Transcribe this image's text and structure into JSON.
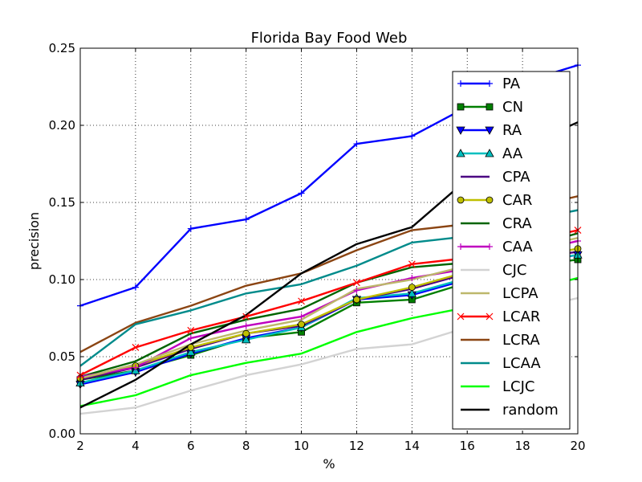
{
  "chart_data": {
    "type": "line",
    "title": "Florida Bay Food Web",
    "xlabel": "%",
    "ylabel": "precision",
    "xlim": [
      2,
      20
    ],
    "ylim": [
      0.0,
      0.25
    ],
    "xticks": [
      "2",
      "4",
      "6",
      "8",
      "10",
      "12",
      "14",
      "16",
      "18",
      "20"
    ],
    "yticks": [
      "0.00",
      "0.05",
      "0.10",
      "0.15",
      "0.20",
      "0.25"
    ],
    "grid": true,
    "legend_position": "right",
    "x": [
      2,
      4,
      6,
      8,
      10,
      12,
      14,
      16,
      18,
      20
    ],
    "series": [
      {
        "name": "PA",
        "color": "#0000ff",
        "marker": "plus",
        "values": [
          0.083,
          0.095,
          0.133,
          0.139,
          0.156,
          0.188,
          0.193,
          0.212,
          0.228,
          0.239
        ]
      },
      {
        "name": "CN",
        "color": "#007f00",
        "marker": "square",
        "values": [
          0.035,
          0.041,
          0.051,
          0.062,
          0.066,
          0.085,
          0.087,
          0.098,
          0.108,
          0.113
        ]
      },
      {
        "name": "RA",
        "color": "#0000ff",
        "marker": "triangle-down",
        "values": [
          0.032,
          0.04,
          0.052,
          0.062,
          0.069,
          0.087,
          0.09,
          0.1,
          0.11,
          0.116
        ]
      },
      {
        "name": "AA",
        "color": "#00bfbf",
        "marker": "triangle-up",
        "values": [
          0.033,
          0.041,
          0.053,
          0.061,
          0.069,
          0.088,
          0.091,
          0.101,
          0.111,
          0.116
        ]
      },
      {
        "name": "CPA",
        "color": "#4b0082",
        "marker": "none",
        "values": [
          0.035,
          0.043,
          0.055,
          0.065,
          0.07,
          0.087,
          0.094,
          0.104,
          0.113,
          0.118
        ]
      },
      {
        "name": "CAR",
        "color": "#bfbf00",
        "marker": "circle",
        "values": [
          0.036,
          0.044,
          0.056,
          0.065,
          0.071,
          0.087,
          0.095,
          0.105,
          0.114,
          0.12
        ]
      },
      {
        "name": "CRA",
        "color": "#006400",
        "marker": "none",
        "values": [
          0.037,
          0.047,
          0.065,
          0.074,
          0.081,
          0.098,
          0.108,
          0.111,
          0.12,
          0.13
        ]
      },
      {
        "name": "CAA",
        "color": "#bf00bf",
        "marker": "plus",
        "values": [
          0.037,
          0.043,
          0.062,
          0.07,
          0.076,
          0.093,
          0.101,
          0.107,
          0.117,
          0.125
        ]
      },
      {
        "name": "CJC",
        "color": "#d3d3d3",
        "marker": "none",
        "values": [
          0.013,
          0.017,
          0.028,
          0.038,
          0.045,
          0.055,
          0.058,
          0.069,
          0.08,
          0.088
        ]
      },
      {
        "name": "LCPA",
        "color": "#bdb76b",
        "marker": "none",
        "values": [
          0.036,
          0.045,
          0.058,
          0.067,
          0.074,
          0.094,
          0.1,
          0.109,
          0.119,
          0.127
        ]
      },
      {
        "name": "LCAR",
        "color": "#ff0000",
        "marker": "x",
        "values": [
          0.038,
          0.056,
          0.067,
          0.076,
          0.086,
          0.098,
          0.11,
          0.114,
          0.124,
          0.132
        ]
      },
      {
        "name": "LCRA",
        "color": "#8b4513",
        "marker": "none",
        "values": [
          0.053,
          0.072,
          0.083,
          0.096,
          0.104,
          0.119,
          0.132,
          0.136,
          0.146,
          0.154
        ]
      },
      {
        "name": "LCAA",
        "color": "#008b8b",
        "marker": "none",
        "values": [
          0.044,
          0.071,
          0.08,
          0.091,
          0.097,
          0.109,
          0.124,
          0.128,
          0.138,
          0.145
        ]
      },
      {
        "name": "LCJC",
        "color": "#00ff00",
        "marker": "none",
        "values": [
          0.018,
          0.025,
          0.038,
          0.046,
          0.052,
          0.066,
          0.075,
          0.082,
          0.092,
          0.101
        ]
      },
      {
        "name": "random",
        "color": "#000000",
        "marker": "none",
        "values": [
          0.017,
          0.035,
          0.058,
          0.077,
          0.104,
          0.123,
          0.134,
          0.165,
          0.186,
          0.202
        ]
      }
    ]
  }
}
